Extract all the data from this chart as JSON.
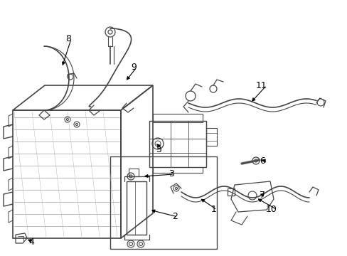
{
  "bg_color": "#ffffff",
  "lc": "#444444",
  "figsize": [
    4.89,
    3.6
  ],
  "dpi": 100
}
